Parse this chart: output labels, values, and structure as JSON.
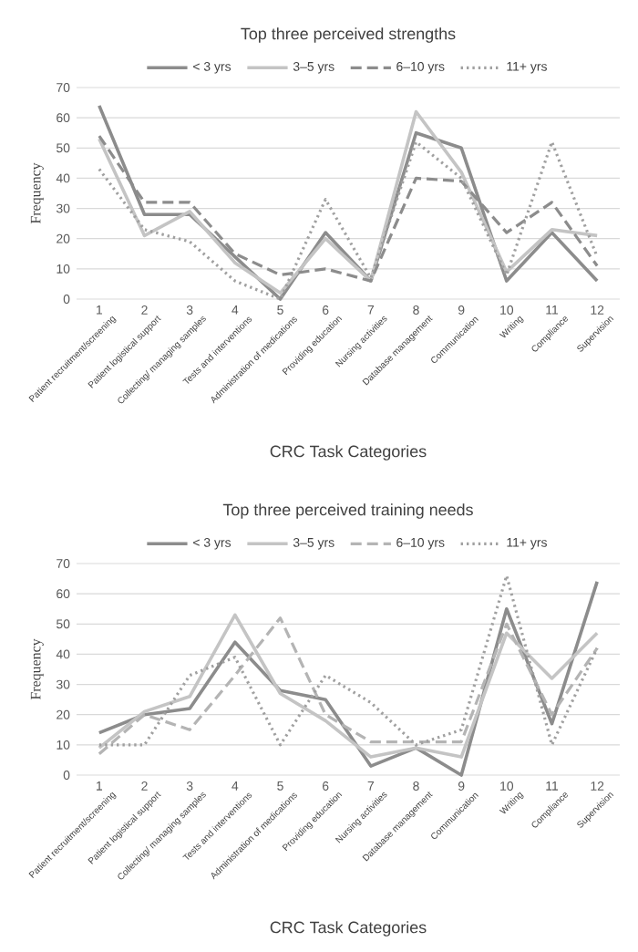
{
  "chart_data": [
    {
      "type": "line",
      "title": "Top three perceived strengths",
      "xlabel": "CRC Task Categories",
      "ylabel": "Frequency",
      "x": [
        1,
        2,
        3,
        4,
        5,
        6,
        7,
        8,
        9,
        10,
        11,
        12
      ],
      "xlim": [
        0.5,
        12.5
      ],
      "xticks": [
        1,
        2,
        3,
        4,
        5,
        6,
        7,
        8,
        9,
        10,
        11,
        12
      ],
      "ylim": [
        0,
        70
      ],
      "yticks": [
        0,
        10,
        20,
        30,
        40,
        50,
        60,
        70
      ],
      "grid": "y",
      "legend": "top",
      "annotations": [
        "Patient recruitment/screening",
        "Patient logistical support",
        "Collecting/ managing samples",
        "Tests and interventions",
        "Administration of medications",
        "Providing education",
        "Nursing activities",
        "Database management",
        "Communication",
        "Writing",
        "Compliance",
        "Supervision"
      ],
      "series": [
        {
          "name": "< 3 yrs",
          "color": "#8c8c8c",
          "line_style": "solid",
          "values": [
            64,
            28,
            28,
            14,
            0,
            22,
            6,
            55,
            50,
            6,
            22,
            6
          ]
        },
        {
          "name": "3–5 yrs",
          "color": "#c4c4c4",
          "line_style": "solid",
          "values": [
            53,
            21,
            29,
            12,
            2,
            20,
            6,
            62,
            42,
            9,
            23,
            21
          ]
        },
        {
          "name": "6–10 yrs",
          "color": "#8c8c8c",
          "line_style": "dashed",
          "values": [
            54,
            32,
            32,
            15,
            8,
            10,
            6,
            40,
            39,
            22,
            32,
            11
          ]
        },
        {
          "name": "11+ yrs",
          "color": "#a0a0a0",
          "line_style": "dotted",
          "values": [
            43,
            23,
            19,
            6,
            0,
            33,
            7,
            52,
            40,
            8,
            52,
            14
          ]
        }
      ]
    },
    {
      "type": "line",
      "title": "Top three perceived training needs",
      "xlabel": "CRC Task Categories",
      "ylabel": "Frequency",
      "x": [
        1,
        2,
        3,
        4,
        5,
        6,
        7,
        8,
        9,
        10,
        11,
        12
      ],
      "xlim": [
        0.5,
        12.5
      ],
      "xticks": [
        1,
        2,
        3,
        4,
        5,
        6,
        7,
        8,
        9,
        10,
        11,
        12
      ],
      "ylim": [
        0,
        70
      ],
      "yticks": [
        0,
        10,
        20,
        30,
        40,
        50,
        60,
        70
      ],
      "grid": "y",
      "legend": "top",
      "annotations": [
        "Patient recruitment/screening",
        "Patient logistical support",
        "Collecting/ managing samples",
        "Tests and interventions",
        "Administration of medications",
        "Providing education",
        "Nursing activities",
        "Database management",
        "Communication",
        "Writing",
        "Compliance",
        "Supervision"
      ],
      "series": [
        {
          "name": "< 3 yrs",
          "color": "#8c8c8c",
          "line_style": "solid",
          "values": [
            14,
            20,
            22,
            44,
            28,
            25,
            3,
            9,
            0,
            55,
            17,
            64
          ]
        },
        {
          "name": "3–5 yrs",
          "color": "#c4c4c4",
          "line_style": "solid",
          "values": [
            9,
            21,
            26,
            53,
            27,
            18,
            6,
            9,
            6,
            47,
            32,
            47
          ]
        },
        {
          "name": "6–10 yrs",
          "color": "#b4b4b4",
          "line_style": "dashed",
          "values": [
            7,
            20,
            15,
            33,
            52,
            20,
            11,
            11,
            11,
            50,
            20,
            42
          ]
        },
        {
          "name": "11+ yrs",
          "color": "#a0a0a0",
          "line_style": "dotted",
          "values": [
            10,
            10,
            33,
            39,
            10,
            33,
            24,
            10,
            15,
            66,
            10,
            42
          ]
        }
      ]
    }
  ]
}
